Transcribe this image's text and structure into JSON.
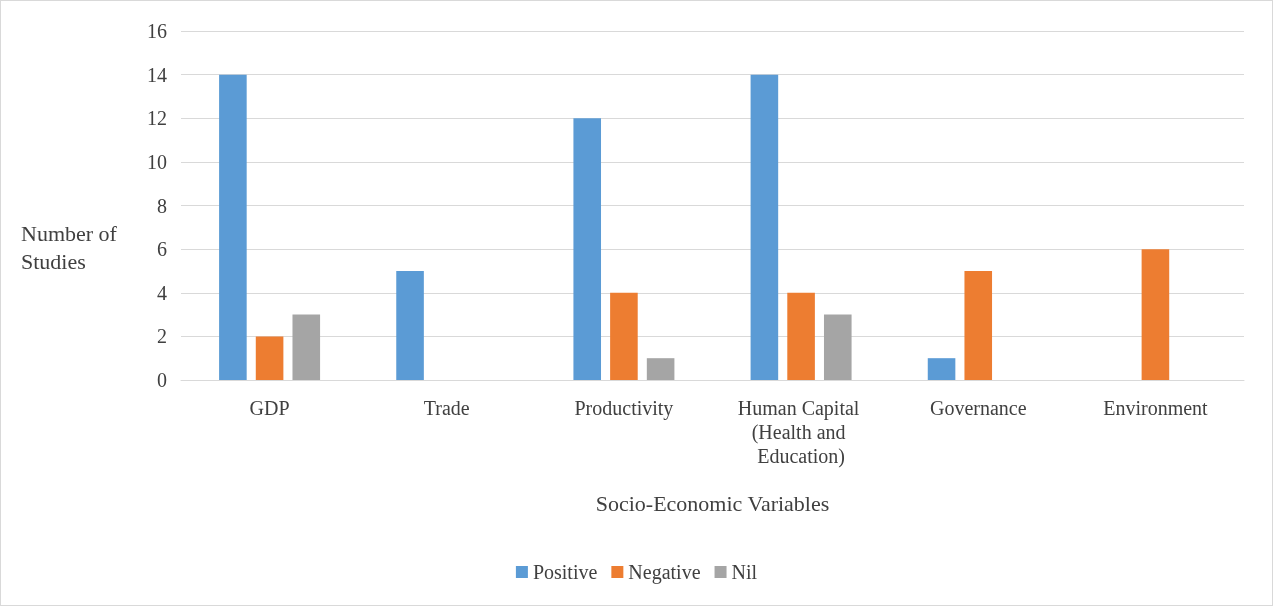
{
  "chart_data": {
    "type": "bar",
    "xlabel": "Socio-Economic Variables",
    "ylabel": "Number of Studies",
    "categories": [
      "GDP",
      "Trade",
      "Productivity",
      "Human Capital (Health and Education)",
      "Governance",
      "Environment"
    ],
    "series": [
      {
        "name": "Positive",
        "color": "#5b9bd5",
        "values": [
          14,
          5,
          12,
          14,
          1,
          0
        ]
      },
      {
        "name": "Negative",
        "color": "#ed7d31",
        "values": [
          2,
          0,
          4,
          4,
          5,
          6
        ]
      },
      {
        "name": "Nil",
        "color": "#a5a5a5",
        "values": [
          3,
          0,
          1,
          3,
          0,
          0
        ]
      }
    ],
    "ylim": [
      0,
      16
    ],
    "yticks": [
      0,
      2,
      4,
      6,
      8,
      10,
      12,
      14,
      16
    ],
    "grid": "y",
    "legend": "bottom"
  }
}
